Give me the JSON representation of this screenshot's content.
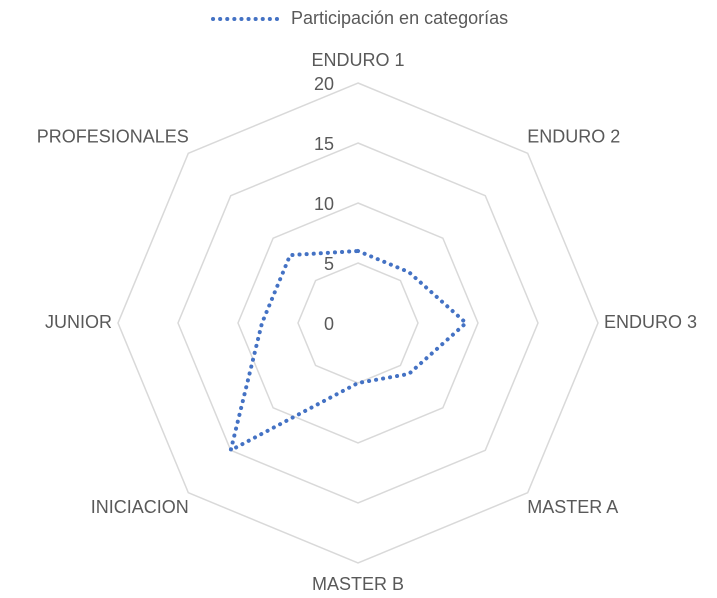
{
  "chart_data": {
    "type": "radar",
    "categories": [
      "ENDURO 1",
      "ENDURO 2",
      "ENDURO 3",
      "MASTER A",
      "MASTER B",
      "INICIACION",
      "JUNIOR",
      "PROFESIONALES"
    ],
    "series": [
      {
        "name": "Participación en categorías",
        "color": "#4472c4",
        "values": [
          6,
          6,
          9,
          6,
          5,
          15,
          8,
          8
        ]
      }
    ],
    "ylim": [
      0,
      20
    ],
    "yticks": [
      0,
      5,
      10,
      15,
      20
    ],
    "grid": true,
    "legend": "top"
  }
}
